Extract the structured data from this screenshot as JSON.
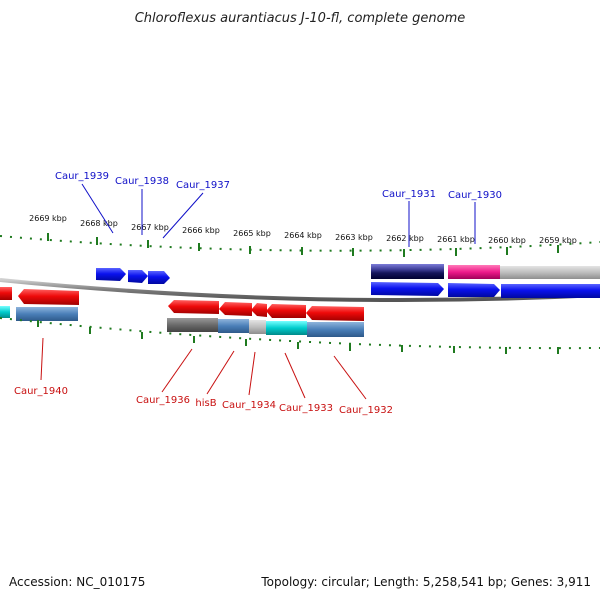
{
  "title": "Chloroflexus aurantiacus J-10-fl, complete genome",
  "footer": {
    "accession": "Accession: NC_010175",
    "summary": "Topology: circular; Length: 5,258,541 bp; Genes: 3,911"
  },
  "ruler": {
    "labels": [
      "2669 kbp",
      "2668 kbp",
      "2667 kbp",
      "2666 kbp",
      "2665 kbp",
      "2664 kbp",
      "2663 kbp",
      "2662 kbp",
      "2661 kbp",
      "2660 kbp",
      "2659 kbp"
    ]
  },
  "forward_labels": [
    "Caur_1939",
    "Caur_1938",
    "Caur_1937",
    "Caur_1931",
    "Caur_1930"
  ],
  "reverse_labels": [
    "Caur_1940",
    "Caur_1936",
    "hisB",
    "Caur_1934",
    "Caur_1933",
    "Caur_1932"
  ],
  "colors": {
    "forward_gene": "#0a12ee",
    "reverse_gene": "#ee1010",
    "backbone": "#888888",
    "tick": "#1f7a1f",
    "forward_label": "#1010c8",
    "reverse_label": "#c81010"
  }
}
